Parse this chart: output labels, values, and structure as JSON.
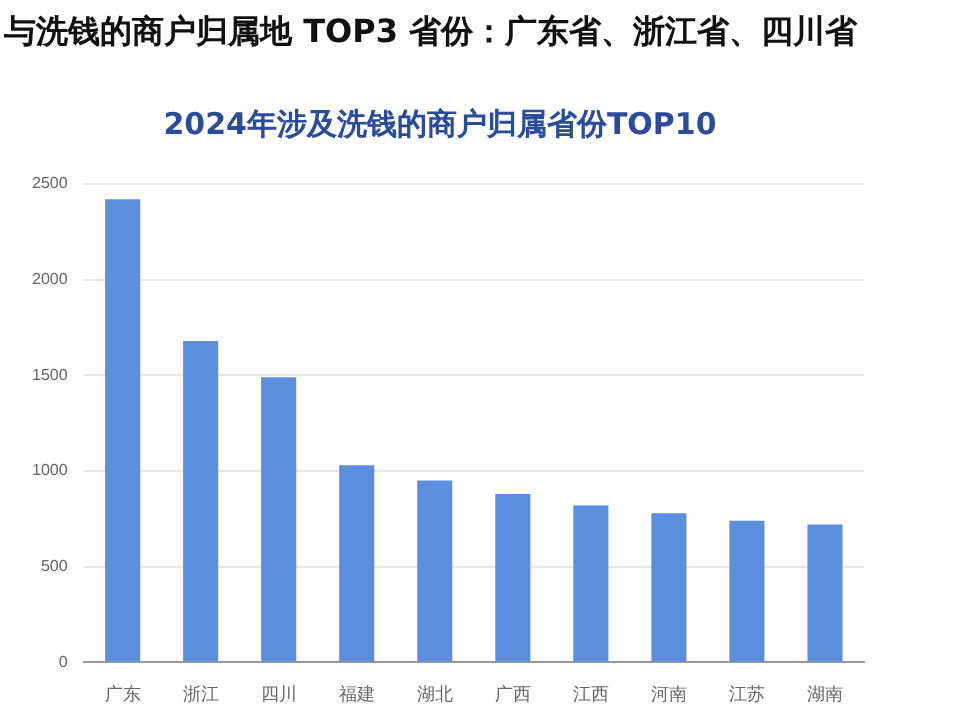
{
  "chart_data": {
    "type": "bar",
    "title": "与洗钱的商户归属地 TOP3 省份：广东省、浙江省、四川省",
    "subtitle": "2024年涉及洗钱的商户归属省份TOP10",
    "categories": [
      "广东",
      "浙江",
      "四川",
      "福建",
      "湖北",
      "广西",
      "江西",
      "河南",
      "江苏",
      "湖南"
    ],
    "values": [
      2420,
      1680,
      1490,
      1030,
      950,
      880,
      820,
      780,
      740,
      720
    ],
    "color": "#5b8fde",
    "ylim": [
      0,
      2500
    ],
    "yticks": [
      0,
      500,
      1000,
      1500,
      2000,
      2500
    ],
    "grid": "y",
    "legend": false
  }
}
